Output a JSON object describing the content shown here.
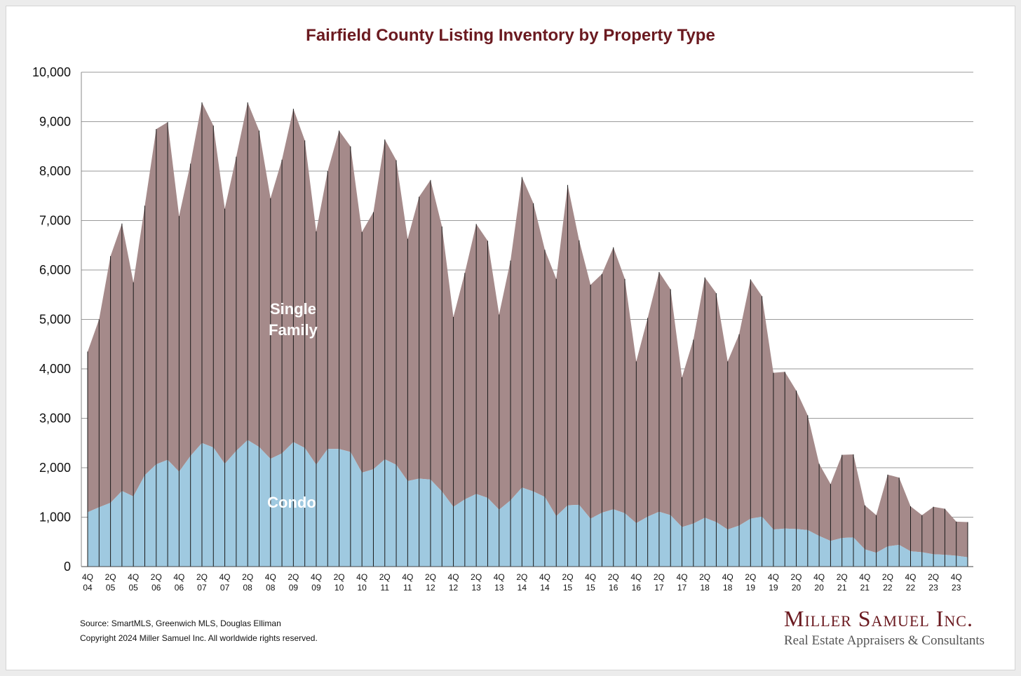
{
  "chart_data": {
    "type": "area",
    "stacked": true,
    "title": "Fairfield County Listing Inventory by Property Type",
    "xlabel": "",
    "ylabel": "",
    "ylim": [
      0,
      10000
    ],
    "yticks": [
      "0",
      "1,000",
      "2,000",
      "3,000",
      "4,000",
      "5,000",
      "6,000",
      "7,000",
      "8,000",
      "9,000",
      "10,000"
    ],
    "ytick_values": [
      0,
      1000,
      2000,
      3000,
      4000,
      5000,
      6000,
      7000,
      8000,
      9000,
      10000
    ],
    "grid": true,
    "x": [
      "4Q04",
      "1Q05",
      "2Q05",
      "3Q05",
      "4Q05",
      "1Q06",
      "2Q06",
      "3Q06",
      "4Q06",
      "1Q07",
      "2Q07",
      "3Q07",
      "4Q07",
      "1Q08",
      "2Q08",
      "3Q08",
      "4Q08",
      "1Q09",
      "2Q09",
      "3Q09",
      "4Q09",
      "1Q10",
      "2Q10",
      "3Q10",
      "4Q10",
      "1Q11",
      "2Q11",
      "3Q11",
      "4Q11",
      "1Q12",
      "2Q12",
      "3Q12",
      "4Q12",
      "1Q13",
      "2Q13",
      "3Q13",
      "4Q13",
      "1Q14",
      "2Q14",
      "3Q14",
      "4Q14",
      "1Q15",
      "2Q15",
      "3Q15",
      "4Q15",
      "1Q16",
      "2Q16",
      "3Q16",
      "4Q16",
      "1Q17",
      "2Q17",
      "3Q17",
      "4Q17",
      "1Q18",
      "2Q18",
      "3Q18",
      "4Q18",
      "1Q19",
      "2Q19",
      "3Q19",
      "4Q19",
      "1Q20",
      "2Q20",
      "3Q20",
      "4Q20",
      "1Q21",
      "2Q21",
      "3Q21",
      "4Q21",
      "1Q22",
      "2Q22",
      "3Q22",
      "4Q22",
      "1Q23",
      "2Q23",
      "3Q23",
      "4Q23",
      "1Q24"
    ],
    "x_tick_labels": [
      {
        "top": "4Q",
        "bottom": "04"
      },
      {
        "top": "2Q",
        "bottom": "05"
      },
      {
        "top": "4Q",
        "bottom": "05"
      },
      {
        "top": "2Q",
        "bottom": "06"
      },
      {
        "top": "4Q",
        "bottom": "06"
      },
      {
        "top": "2Q",
        "bottom": "07"
      },
      {
        "top": "4Q",
        "bottom": "07"
      },
      {
        "top": "2Q",
        "bottom": "08"
      },
      {
        "top": "4Q",
        "bottom": "08"
      },
      {
        "top": "2Q",
        "bottom": "09"
      },
      {
        "top": "4Q",
        "bottom": "09"
      },
      {
        "top": "2Q",
        "bottom": "10"
      },
      {
        "top": "4Q",
        "bottom": "10"
      },
      {
        "top": "2Q",
        "bottom": "11"
      },
      {
        "top": "4Q",
        "bottom": "11"
      },
      {
        "top": "2Q",
        "bottom": "12"
      },
      {
        "top": "4Q",
        "bottom": "12"
      },
      {
        "top": "2Q",
        "bottom": "13"
      },
      {
        "top": "4Q",
        "bottom": "13"
      },
      {
        "top": "2Q",
        "bottom": "14"
      },
      {
        "top": "4Q",
        "bottom": "14"
      },
      {
        "top": "2Q",
        "bottom": "15"
      },
      {
        "top": "4Q",
        "bottom": "15"
      },
      {
        "top": "2Q",
        "bottom": "16"
      },
      {
        "top": "4Q",
        "bottom": "16"
      },
      {
        "top": "2Q",
        "bottom": "17"
      },
      {
        "top": "4Q",
        "bottom": "17"
      },
      {
        "top": "2Q",
        "bottom": "18"
      },
      {
        "top": "4Q",
        "bottom": "18"
      },
      {
        "top": "2Q",
        "bottom": "19"
      },
      {
        "top": "4Q",
        "bottom": "19"
      },
      {
        "top": "2Q",
        "bottom": "20"
      },
      {
        "top": "4Q",
        "bottom": "20"
      },
      {
        "top": "2Q",
        "bottom": "21"
      },
      {
        "top": "4Q",
        "bottom": "21"
      },
      {
        "top": "2Q",
        "bottom": "22"
      },
      {
        "top": "4Q",
        "bottom": "22"
      },
      {
        "top": "2Q",
        "bottom": "23"
      },
      {
        "top": "4Q",
        "bottom": "23"
      }
    ],
    "series": [
      {
        "name": "Condo",
        "color": "#9fc9e0",
        "values": [
          1100,
          1200,
          1290,
          1530,
          1420,
          1850,
          2070,
          2160,
          1920,
          2240,
          2500,
          2410,
          2080,
          2340,
          2560,
          2420,
          2180,
          2290,
          2520,
          2400,
          2060,
          2380,
          2380,
          2320,
          1900,
          1970,
          2170,
          2060,
          1730,
          1780,
          1760,
          1520,
          1210,
          1360,
          1470,
          1390,
          1150,
          1340,
          1600,
          1520,
          1410,
          1020,
          1240,
          1250,
          970,
          1090,
          1160,
          1080,
          880,
          1010,
          1110,
          1040,
          800,
          870,
          990,
          900,
          750,
          830,
          970,
          1010,
          750,
          770,
          760,
          740,
          620,
          520,
          580,
          590,
          350,
          280,
          410,
          440,
          310,
          290,
          250,
          240,
          220,
          190
        ]
      },
      {
        "name": "Single Family",
        "color": "#a58a8a",
        "values": [
          3250,
          3800,
          4990,
          5410,
          4330,
          5450,
          6780,
          6830,
          5170,
          5910,
          6890,
          6510,
          5160,
          5950,
          6830,
          6400,
          5270,
          5940,
          6740,
          6220,
          4720,
          5620,
          6440,
          6180,
          4870,
          5200,
          6470,
          6160,
          4900,
          5700,
          6060,
          5360,
          3840,
          4580,
          5460,
          5200,
          3950,
          4850,
          6280,
          5830,
          5000,
          4800,
          6480,
          5350,
          4730,
          4830,
          5300,
          4740,
          3270,
          4020,
          4850,
          4570,
          3030,
          3720,
          4860,
          4630,
          3400,
          3870,
          4840,
          4460,
          3170,
          3170,
          2800,
          2320,
          1460,
          1150,
          1680,
          1680,
          890,
          760,
          1450,
          1360,
          910,
          750,
          960,
          930,
          690,
          710
        ]
      }
    ],
    "annotations": [
      {
        "text": "Single",
        "series": "Single Family"
      },
      {
        "text": "Family",
        "series": "Single Family"
      },
      {
        "text": "Condo",
        "series": "Condo"
      }
    ]
  },
  "footer": {
    "source": "Source: SmartMLS, Greenwich MLS, Douglas Elliman",
    "copyright": "Copyright 2024 Miller Samuel Inc.  All worldwide rights reserved."
  },
  "brand": {
    "name": "Miller Samuel Inc.",
    "tagline": "Real Estate Appraisers & Consultants"
  }
}
